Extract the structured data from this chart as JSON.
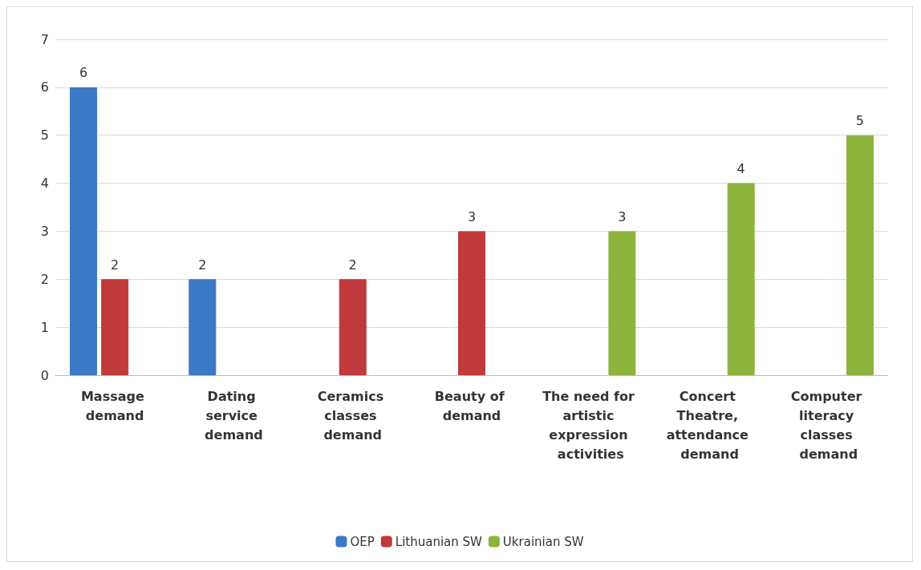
{
  "chart_data": {
    "type": "bar",
    "categories": [
      "Massage demand",
      "Dating service demand",
      "Ceramics classes demand",
      "Beauty of demand",
      "The need for artistic expression activities",
      "Concert Theatre, attendance demand",
      "Computer literacy classes demand"
    ],
    "series": [
      {
        "name": "OEP",
        "color": "#3b78c6",
        "values": [
          6,
          2,
          null,
          null,
          null,
          null,
          null
        ]
      },
      {
        "name": "Lithuanian SW",
        "color": "#c0393b",
        "values": [
          2,
          null,
          2,
          3,
          null,
          null,
          null
        ]
      },
      {
        "name": "Ukrainian SW",
        "color": "#8db43d",
        "values": [
          null,
          null,
          null,
          null,
          3,
          4,
          5
        ]
      }
    ],
    "ylim": [
      0,
      7
    ],
    "yticks": [
      0,
      1,
      2,
      3,
      4,
      5,
      6,
      7
    ],
    "grid": "y",
    "legend": "bottom",
    "data_labels": true
  }
}
